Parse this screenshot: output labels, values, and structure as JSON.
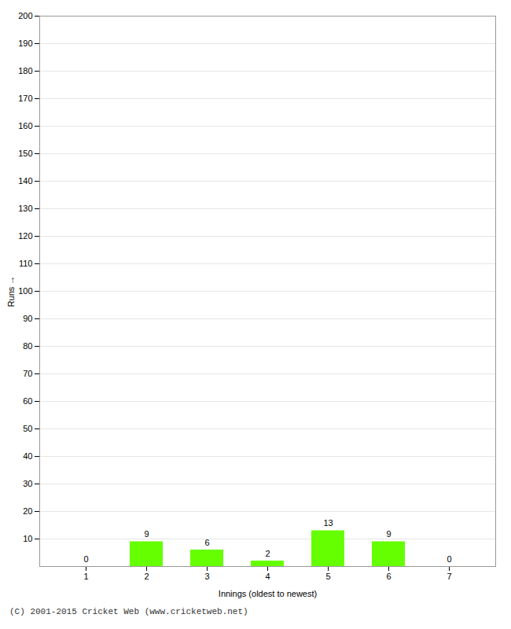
{
  "chart_data": {
    "type": "bar",
    "categories": [
      "1",
      "2",
      "3",
      "4",
      "5",
      "6",
      "7"
    ],
    "values": [
      0,
      9,
      6,
      2,
      13,
      9,
      0
    ],
    "color": "#66ff00",
    "xlabel": "Innings (oldest to newest)",
    "ylabel": "Runs",
    "ylim": [
      0,
      200
    ],
    "yticks": [
      10,
      20,
      30,
      40,
      50,
      60,
      70,
      80,
      90,
      100,
      110,
      120,
      130,
      140,
      150,
      160,
      170,
      180,
      190,
      200
    ],
    "grid": true,
    "data_labels": true,
    "caption": "(C) 2001-2015 Cricket Web (www.cricketweb.net)"
  }
}
